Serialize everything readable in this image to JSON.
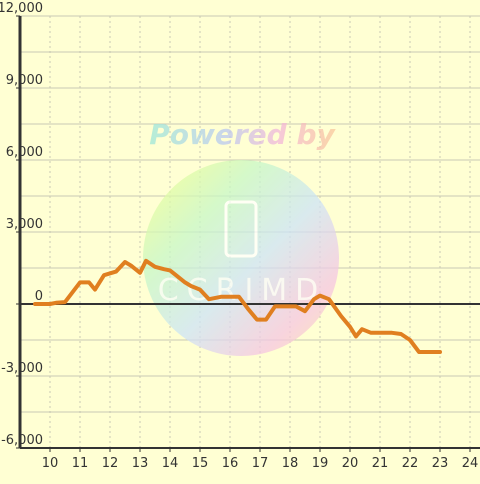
{
  "chart_data": {
    "type": "line",
    "title": "",
    "xlabel": "",
    "ylabel": "",
    "xlim": [
      9.5,
      24.2
    ],
    "ylim": [
      -6000,
      12000
    ],
    "x_ticks": [
      10,
      11,
      12,
      13,
      14,
      15,
      16,
      17,
      18,
      19,
      20,
      21,
      22,
      23,
      24
    ],
    "x_tick_labels": [
      "10",
      "11",
      "12",
      "13",
      "14",
      "15",
      "16",
      "17",
      "18",
      "19",
      "20",
      "21",
      "22",
      "23",
      "24"
    ],
    "y_ticks": [
      -6000,
      -3000,
      0,
      3000,
      6000,
      9000,
      12000
    ],
    "y_tick_labels": [
      "-6,000",
      "-3,000",
      "0",
      "3,000",
      "6,000",
      "9,000",
      "12,000"
    ],
    "grid": true,
    "series": [
      {
        "color": "#e07f20",
        "x": [
          9.5,
          10.0,
          10.2,
          10.5,
          11.0,
          11.3,
          11.5,
          11.8,
          12.2,
          12.5,
          12.7,
          13.0,
          13.2,
          13.5,
          13.8,
          14.0,
          14.2,
          14.5,
          14.7,
          15.0,
          15.3,
          15.7,
          16.0,
          16.3,
          16.6,
          16.9,
          17.2,
          17.5,
          18.0,
          18.2,
          18.5,
          18.8,
          19.0,
          19.3,
          19.7,
          20.0,
          20.2,
          20.4,
          20.7,
          21.0,
          21.4,
          21.7,
          22.0,
          22.3,
          22.7,
          23.0
        ],
        "values": [
          0,
          0,
          50,
          80,
          900,
          900,
          600,
          1200,
          1350,
          1750,
          1600,
          1300,
          1800,
          1550,
          1450,
          1400,
          1200,
          900,
          750,
          600,
          200,
          300,
          300,
          300,
          -200,
          -650,
          -650,
          -100,
          -100,
          -100,
          -300,
          200,
          350,
          200,
          -500,
          -950,
          -1350,
          -1050,
          -1200,
          -1200,
          -1200,
          -1250,
          -1500,
          -2000,
          -2000,
          -2000
        ]
      }
    ]
  },
  "watermark": {
    "text": "Powered by",
    "logo_text": "CCRIMD"
  },
  "colors": {
    "background": "#ffffd3",
    "grid": "#c8c8b4",
    "axis": "#333333",
    "line": "#e07f20"
  }
}
